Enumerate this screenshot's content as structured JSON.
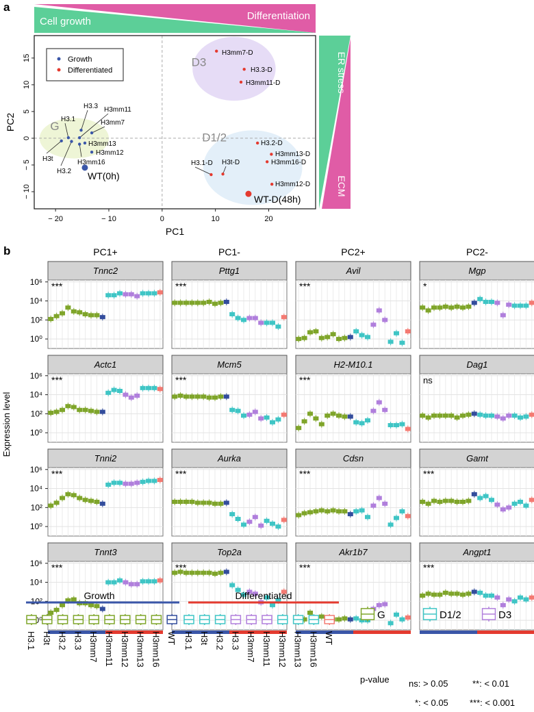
{
  "panel_a": {
    "label": "a",
    "banner_left": "Cell growth",
    "banner_right": "Differentiation",
    "side_top": "ER stress",
    "side_bottom": "ECM",
    "colors": {
      "green": "#5ccf98",
      "pink": "#e05ca6",
      "growth": "#3a56a8",
      "diff": "#e43a2f"
    }
  },
  "panel_b": {
    "label": "b",
    "column_titles": [
      "PC1+",
      "PC1-",
      "PC2+",
      "PC2-"
    ],
    "ylabel": "Expression level",
    "yticks": [
      "10⁶",
      "10⁴",
      "10²",
      "10⁰"
    ],
    "legend": {
      "growth_title": "Growth",
      "diff_title": "Differentiated",
      "samples": [
        "H3.1",
        "H3t",
        "H3.2",
        "H3.3",
        "H3mm7",
        "H3mm11",
        "H3mm12",
        "H3mm13",
        "H3mm16",
        "WT",
        "H3.1",
        "H3t",
        "H3.2",
        "H3.3",
        "H3mm7",
        "H3mm11",
        "H3mm12",
        "H3mm13",
        "H3mm16",
        "WT"
      ],
      "groups": [
        "G",
        "G",
        "G",
        "G",
        "G",
        "G",
        "G",
        "G",
        "G",
        "WT0",
        "D12",
        "D12",
        "D12",
        "D3",
        "D3",
        "D3",
        "D12",
        "D12",
        "D12",
        "WTD"
      ],
      "cluster_labels": [
        "G",
        "D1/2",
        "D3"
      ],
      "pvalue_title": "p-value",
      "pvalue_items": [
        "ns:  > 0.05",
        "**: < 0.01",
        "*: < 0.05",
        "***: < 0.001"
      ]
    },
    "group_colors": {
      "G": "#7fa52a",
      "D12": "#3fc5c5",
      "D3": "#b07fdc",
      "WT0": "#334d9c",
      "WTD": "#f47a72"
    }
  },
  "chart_data": [
    {
      "type": "scatter",
      "title": "",
      "xlabel": "PC1",
      "ylabel": "PC2",
      "xlim": [
        -24,
        28.8
      ],
      "ylim": [
        -13.2,
        19.2
      ],
      "xticks": [
        -20,
        -10,
        0,
        10,
        20
      ],
      "yticks": [
        -10,
        -5,
        0,
        5,
        10,
        15
      ],
      "legend": {
        "placement": "top-left",
        "entries": [
          "Growth",
          "Differentiated"
        ]
      },
      "clusters": [
        {
          "name": "G",
          "cx": -16.5,
          "cy": 0,
          "rx": 6.5,
          "ry": 3.8,
          "color": "#eef5d6"
        },
        {
          "name": "D3",
          "cx": 13.5,
          "cy": 13,
          "rx": 7.8,
          "ry": 6,
          "color": "#e6dcf6"
        },
        {
          "name": "D1/2",
          "cx": 17,
          "cy": -5.5,
          "rx": 9.3,
          "ry": 7,
          "color": "#e3eff9"
        }
      ],
      "points": [
        {
          "label": "H3.1",
          "x": -17.6,
          "y": 0.1,
          "group": "Growth"
        },
        {
          "label": "H3t",
          "x": -18.9,
          "y": -0.5,
          "group": "Growth"
        },
        {
          "label": "H3.2",
          "x": -17.0,
          "y": -0.6,
          "group": "Growth"
        },
        {
          "label": "H3.3",
          "x": -15.2,
          "y": 1.5,
          "group": "Growth"
        },
        {
          "label": "H3mm11",
          "x": -15.5,
          "y": 0.1,
          "group": "Growth"
        },
        {
          "label": "H3mm7",
          "x": -13.2,
          "y": 1.0,
          "group": "Growth"
        },
        {
          "label": "H3mm13",
          "x": -14.5,
          "y": -0.9,
          "group": "Growth"
        },
        {
          "label": "H3mm12",
          "x": -13.2,
          "y": -2.6,
          "group": "Growth"
        },
        {
          "label": "H3mm16",
          "x": -15.5,
          "y": -1.1,
          "group": "Growth"
        },
        {
          "label": "WT(0h)",
          "x": -14.5,
          "y": -5.5,
          "group": "Growth",
          "big": true
        },
        {
          "label": "H3mm7-D",
          "x": 10.2,
          "y": 16.3,
          "group": "Differentiated"
        },
        {
          "label": "H3.3-D",
          "x": 15.4,
          "y": 12.9,
          "group": "Differentiated"
        },
        {
          "label": "H3mm11-D",
          "x": 14.8,
          "y": 10.5,
          "group": "Differentiated"
        },
        {
          "label": "H3.2-D",
          "x": 17.9,
          "y": -0.9,
          "group": "Differentiated"
        },
        {
          "label": "H3mm13-D",
          "x": 20.5,
          "y": -3.0,
          "group": "Differentiated"
        },
        {
          "label": "H3mm16-D",
          "x": 19.7,
          "y": -4.4,
          "group": "Differentiated"
        },
        {
          "label": "H3.1-D",
          "x": 9.2,
          "y": -6.8,
          "group": "Differentiated"
        },
        {
          "label": "H3t-D",
          "x": 11.4,
          "y": -6.7,
          "group": "Differentiated"
        },
        {
          "label": "H3mm12-D",
          "x": 20.6,
          "y": -8.6,
          "group": "Differentiated"
        },
        {
          "label": "WT-D(48h)",
          "x": 16.2,
          "y": -10.4,
          "group": "Differentiated",
          "big": true
        }
      ]
    },
    {
      "type": "box",
      "ylabel": "Expression level",
      "yscale": "log10",
      "ylim_log10": [
        -1,
        6.2
      ],
      "panels": [
        {
          "gene": "Tnnc2",
          "sig": "***",
          "values": [
            2.1,
            2.4,
            2.7,
            3.3,
            2.9,
            2.8,
            2.6,
            2.5,
            2.5,
            2.3,
            4.6,
            4.6,
            4.8,
            4.7,
            4.7,
            4.5,
            4.8,
            4.8,
            4.8,
            4.9
          ]
        },
        {
          "gene": "Pttg1",
          "sig": "***",
          "values": [
            3.8,
            3.8,
            3.8,
            3.8,
            3.8,
            3.8,
            3.9,
            3.7,
            3.8,
            3.9,
            2.6,
            2.2,
            2.0,
            2.2,
            2.2,
            1.7,
            1.7,
            1.7,
            1.3,
            2.3
          ]
        },
        {
          "gene": "Avil",
          "sig": "***",
          "values": [
            0.0,
            0.1,
            0.7,
            0.8,
            0.1,
            0.2,
            0.5,
            0.0,
            0.1,
            0.2,
            0.8,
            0.4,
            0.2,
            1.5,
            3.0,
            2.0,
            -0.3,
            0.6,
            -0.4,
            0.8
          ]
        },
        {
          "gene": "Mgp",
          "sig": "*",
          "values": [
            3.3,
            3.0,
            3.3,
            3.3,
            3.4,
            3.3,
            3.4,
            3.3,
            3.4,
            3.8,
            4.2,
            3.9,
            3.9,
            3.8,
            2.5,
            3.6,
            3.5,
            3.5,
            3.5,
            3.8
          ]
        },
        {
          "gene": "Actc1",
          "sig": "***",
          "values": [
            2.1,
            2.2,
            2.4,
            2.8,
            2.7,
            2.4,
            2.4,
            2.3,
            2.2,
            2.2,
            4.2,
            4.5,
            4.4,
            4.0,
            3.7,
            3.9,
            4.7,
            4.7,
            4.7,
            4.6
          ]
        },
        {
          "gene": "Mcm5",
          "sig": "***",
          "values": [
            3.8,
            3.9,
            3.8,
            3.8,
            3.8,
            3.8,
            3.7,
            3.7,
            3.8,
            3.8,
            2.4,
            2.3,
            1.8,
            1.9,
            2.2,
            1.5,
            1.6,
            1.1,
            1.4,
            1.9
          ]
        },
        {
          "gene": "H2-M10.1",
          "sig": "***",
          "values": [
            0.5,
            1.2,
            2.0,
            1.5,
            0.9,
            1.8,
            2.0,
            1.8,
            1.7,
            1.7,
            1.1,
            1.0,
            1.3,
            2.3,
            3.2,
            2.4,
            0.8,
            0.8,
            0.9,
            0.4
          ]
        },
        {
          "gene": "Dag1",
          "sig": "ns",
          "values": [
            1.8,
            1.6,
            1.8,
            1.8,
            1.8,
            1.8,
            1.6,
            1.8,
            1.9,
            2.0,
            1.9,
            1.8,
            1.8,
            1.7,
            1.5,
            1.8,
            1.8,
            1.6,
            1.7,
            1.9
          ]
        },
        {
          "gene": "Tnni2",
          "sig": "***",
          "values": [
            2.2,
            2.5,
            3.0,
            3.4,
            3.3,
            3.0,
            2.8,
            2.7,
            2.6,
            2.4,
            4.4,
            4.6,
            4.6,
            4.5,
            4.5,
            4.6,
            4.7,
            4.8,
            4.8,
            4.9
          ]
        },
        {
          "gene": "Aurka",
          "sig": "***",
          "values": [
            2.6,
            2.6,
            2.6,
            2.6,
            2.5,
            2.5,
            2.5,
            2.4,
            2.4,
            2.5,
            1.3,
            0.8,
            0.2,
            0.5,
            1.0,
            0.1,
            0.6,
            0.3,
            0.0,
            0.7
          ]
        },
        {
          "gene": "Cdsn",
          "sig": "***",
          "values": [
            1.2,
            1.4,
            1.5,
            1.6,
            1.7,
            1.6,
            1.7,
            1.6,
            1.6,
            1.3,
            1.6,
            1.7,
            1.0,
            2.2,
            3.0,
            2.4,
            0.2,
            0.9,
            1.6,
            1.1
          ]
        },
        {
          "gene": "Gamt",
          "sig": "***",
          "values": [
            2.6,
            2.4,
            2.7,
            2.6,
            2.7,
            2.7,
            2.6,
            2.6,
            2.7,
            3.4,
            3.0,
            3.2,
            2.8,
            2.3,
            1.8,
            2.0,
            2.4,
            2.6,
            2.2,
            2.8
          ]
        },
        {
          "gene": "Tnnt3",
          "sig": "***",
          "values": [
            0.8,
            1.1,
            1.6,
            2.1,
            2.2,
            1.8,
            1.8,
            1.6,
            1.5,
            1.2,
            4.0,
            4.0,
            4.2,
            4.0,
            3.8,
            3.8,
            4.1,
            4.1,
            4.1,
            4.2
          ]
        },
        {
          "gene": "Top2a",
          "sig": "***",
          "values": [
            5.0,
            5.1,
            5.0,
            5.0,
            5.0,
            5.0,
            5.0,
            4.9,
            5.0,
            5.1,
            3.7,
            3.2,
            2.7,
            3.0,
            2.8,
            1.9,
            2.4,
            1.6,
            2.1,
            3.0
          ]
        },
        {
          "gene": "Akr1b7",
          "sig": "***",
          "values": [
            0.0,
            0.1,
            0.8,
            0.1,
            0.4,
            0.2,
            0.1,
            0.1,
            0.2,
            0.1,
            0.2,
            0.0,
            0.0,
            1.2,
            1.6,
            1.7,
            -0.3,
            0.6,
            0.1,
            0.3
          ]
        },
        {
          "gene": "Angpt1",
          "sig": "***",
          "values": [
            2.6,
            2.8,
            2.7,
            2.7,
            2.9,
            2.8,
            2.8,
            2.7,
            2.8,
            3.0,
            2.9,
            2.6,
            2.6,
            2.4,
            1.6,
            2.2,
            2.0,
            2.4,
            2.2,
            2.4
          ]
        }
      ]
    }
  ]
}
